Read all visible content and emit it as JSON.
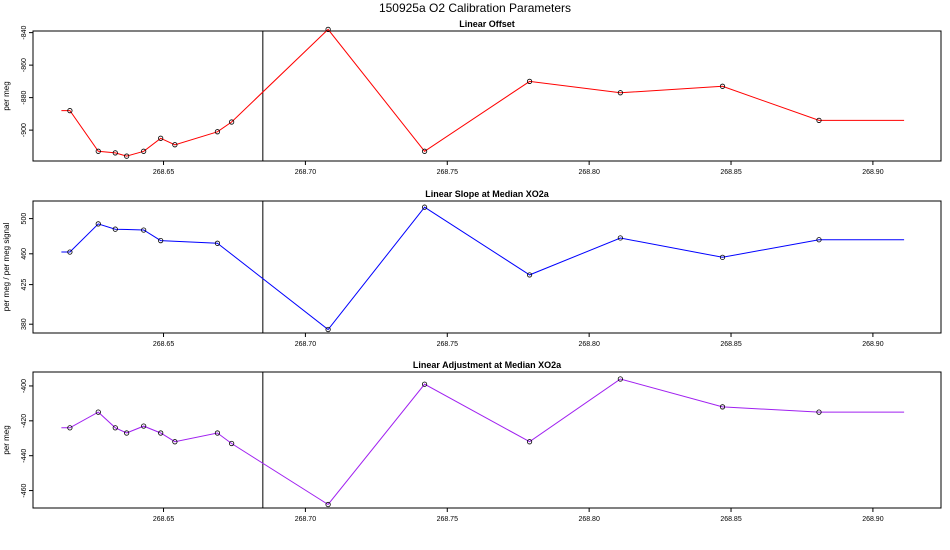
{
  "title": "150925a   O2 Calibration Parameters",
  "chart_data": [
    {
      "type": "line",
      "title": "Linear Offset",
      "ylabel": "per meg",
      "color": "#ff0000",
      "xlim": [
        268.604,
        268.924
      ],
      "ylim": [
        -919,
        -839
      ],
      "xticks": [
        268.65,
        268.7,
        268.75,
        268.8,
        268.85,
        268.9
      ],
      "xtick_labels": [
        "268.65",
        "268.70",
        "268.75",
        "268.80",
        "268.85",
        "268.90"
      ],
      "yticks": [
        -840,
        -860,
        -880,
        -900
      ],
      "ytick_labels": [
        "-840",
        "-860",
        "-880",
        "-900"
      ],
      "vline_x": 268.685,
      "x": [
        268.617,
        268.627,
        268.633,
        268.637,
        268.643,
        268.649,
        268.654,
        268.669,
        268.674,
        268.708,
        268.742,
        268.779,
        268.811,
        268.847,
        268.881
      ],
      "y": [
        -888,
        -913,
        -914,
        -916,
        -913,
        -905,
        -909,
        -901,
        -895,
        -838,
        -913,
        -870,
        -877,
        -873,
        -894
      ],
      "series_ext": {
        "x_start": 268.614,
        "x_end": 268.911
      }
    },
    {
      "type": "line",
      "title": "Linear Slope at Median XO2a",
      "ylabel": "per meg / per meg signal",
      "color": "#0000ff",
      "xlim": [
        268.604,
        268.924
      ],
      "ylim": [
        370,
        520
      ],
      "xticks": [
        268.65,
        268.7,
        268.75,
        268.8,
        268.85,
        268.9
      ],
      "xtick_labels": [
        "268.65",
        "268.70",
        "268.75",
        "268.80",
        "268.85",
        "268.90"
      ],
      "yticks": [
        500,
        460,
        425,
        380
      ],
      "ytick_labels": [
        "500",
        "460",
        "425",
        "380"
      ],
      "vline_x": 268.685,
      "x": [
        268.617,
        268.627,
        268.633,
        268.643,
        268.649,
        268.669,
        268.708,
        268.742,
        268.779,
        268.811,
        268.847,
        268.881
      ],
      "y": [
        462,
        494,
        488,
        487,
        475,
        472,
        374,
        513,
        436,
        478,
        456,
        476
      ],
      "series_ext": {
        "x_start": 268.614,
        "x_end": 268.911
      }
    },
    {
      "type": "line",
      "title": "Linear Adjustment at Median XO2a",
      "ylabel": "per meg",
      "color": "#a020f0",
      "xlim": [
        268.604,
        268.924
      ],
      "ylim": [
        -470,
        -392
      ],
      "xticks": [
        268.65,
        268.7,
        268.75,
        268.8,
        268.85,
        268.9
      ],
      "xtick_labels": [
        "268.65",
        "268.70",
        "268.75",
        "268.80",
        "268.85",
        "268.90"
      ],
      "yticks": [
        -400,
        -420,
        -440,
        -460
      ],
      "ytick_labels": [
        "-400",
        "-420",
        "-440",
        "-460"
      ],
      "vline_x": 268.685,
      "x": [
        268.617,
        268.627,
        268.633,
        268.637,
        268.643,
        268.649,
        268.654,
        268.669,
        268.674,
        268.708,
        268.742,
        268.779,
        268.811,
        268.847,
        268.881
      ],
      "y": [
        -424,
        -415,
        -424,
        -427,
        -423,
        -427,
        -432,
        -427,
        -433,
        -468,
        -399,
        -432,
        -396,
        -412,
        -415
      ],
      "series_ext": {
        "x_start": 268.614,
        "x_end": 268.911
      }
    }
  ]
}
